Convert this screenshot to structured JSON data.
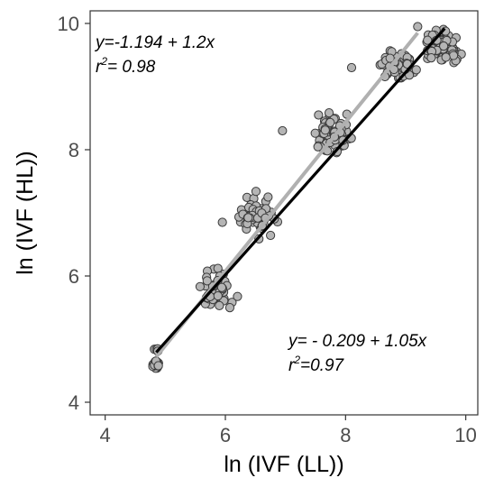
{
  "chart_data": {
    "type": "scatter",
    "xlabel": "ln (IVF (LL))",
    "ylabel": "ln (IVF (HL))",
    "xlim": [
      3.75,
      10.2
    ],
    "ylim": [
      3.8,
      10.2
    ],
    "xticks": [
      "4",
      "6",
      "8",
      "10"
    ],
    "yticks": [
      "4",
      "6",
      "8",
      "10"
    ],
    "grid": false,
    "point_color": "#b5b5b5",
    "point_stroke": "#3a3a3a",
    "clusters": [
      {
        "cx": 4.85,
        "cy": 4.58,
        "sx": 0.04,
        "sy": 0.06,
        "n": 20
      },
      {
        "cx": 4.85,
        "cy": 4.85,
        "sx": 0.03,
        "sy": 0.05,
        "n": 6
      },
      {
        "cx": 5.85,
        "cy": 5.8,
        "sx": 0.18,
        "sy": 0.18,
        "n": 55
      },
      {
        "cx": 6.55,
        "cy": 6.95,
        "sx": 0.22,
        "sy": 0.2,
        "n": 60
      },
      {
        "cx": 7.75,
        "cy": 8.22,
        "sx": 0.24,
        "sy": 0.2,
        "n": 70
      },
      {
        "cx": 8.85,
        "cy": 9.35,
        "sx": 0.22,
        "sy": 0.16,
        "n": 60
      },
      {
        "cx": 9.6,
        "cy": 9.65,
        "sx": 0.18,
        "sy": 0.15,
        "n": 90
      }
    ],
    "outliers": [
      [
        6.95,
        8.3
      ],
      [
        8.1,
        9.3
      ],
      [
        5.95,
        6.85
      ],
      [
        7.55,
        8.55
      ],
      [
        9.2,
        9.95
      ]
    ],
    "lines": [
      {
        "color": "#b0b0b0",
        "x": [
          4.85,
          9.2
        ],
        "y": [
          4.72,
          9.85
        ]
      },
      {
        "color": "#000000",
        "x": [
          4.85,
          9.65
        ],
        "y": [
          4.79,
          9.92
        ]
      }
    ],
    "annotations": {
      "top": {
        "line1": "y=-1.194 + 1.2x",
        "line2_pre": "r",
        "line2_sup": "2",
        "line2_post": "= 0.98"
      },
      "bottom": {
        "line1": "y= - 0.209 + 1.05x",
        "line2_pre": "r",
        "line2_sup": "2",
        "line2_post": "=0.97"
      }
    }
  }
}
